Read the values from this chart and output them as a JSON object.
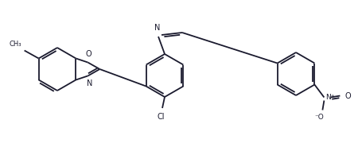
{
  "bg_color": "#ffffff",
  "line_color": "#1a1a2e",
  "lw": 1.3,
  "figsize": [
    4.56,
    1.9
  ],
  "dpi": 100,
  "xlim": [
    0,
    456
  ],
  "ylim": [
    0,
    190
  ]
}
